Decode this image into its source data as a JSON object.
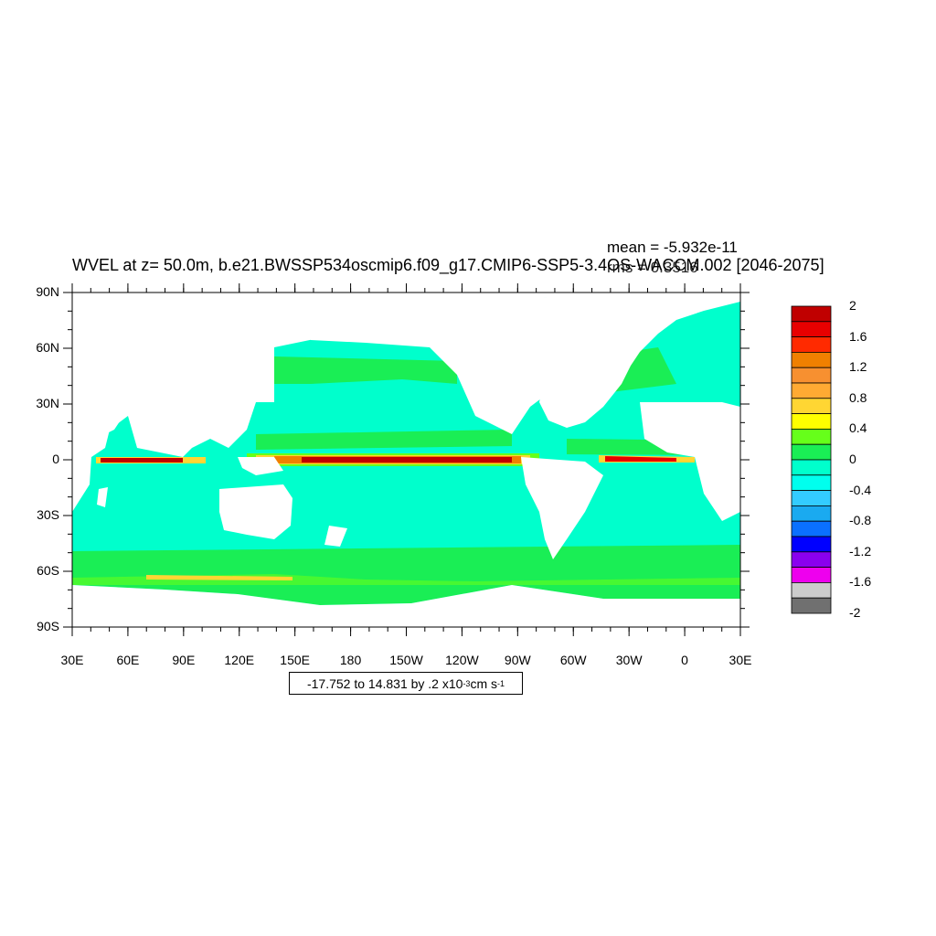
{
  "title": "WVEL at z=  50.0m, b.e21.BWSSP534oscmip6.f09_g17.CMIP6-SSP5-3.4OS-WACCM.002 [2046-2075]",
  "stats": {
    "mean": "mean = -5.932e-11",
    "rms": "rms = 0.3516"
  },
  "y_ticks": [
    "90N",
    "60N",
    "30N",
    "0",
    "30S",
    "60S",
    "90S"
  ],
  "x_ticks": [
    "30E",
    "60E",
    "90E",
    "120E",
    "150E",
    "180",
    "150W",
    "120W",
    "90W",
    "60W",
    "30W",
    "0",
    "30E"
  ],
  "colorbar": {
    "labels": [
      "2",
      "1.6",
      "1.2",
      "0.8",
      "0.4",
      "0",
      "-0.4",
      "-0.8",
      "-1.2",
      "-1.6",
      "-2"
    ],
    "colors_top_to_bottom": [
      "#c00000",
      "#e80000",
      "#ff2a00",
      "#f08000",
      "#f79030",
      "#ffaa33",
      "#ffd633",
      "#ffff00",
      "#66ff1a",
      "#1aee55",
      "#00ffcc",
      "#00ffee",
      "#33ccff",
      "#1aaaf0",
      "#0a70ff",
      "#0000ff",
      "#8a00ee",
      "#ee00ee",
      "#cccccc",
      "#707070"
    ]
  },
  "contour_info": {
    "text": "-17.752 to 14.831 by .2 x10",
    "exponent": "-3",
    "unit": " cm s",
    "unit_exponent": "-1"
  },
  "colors": {
    "ocean_base": "#00ffcc",
    "band_positive": "#1aee55",
    "equator_strong": "#c00000",
    "land": "#ffffff"
  }
}
